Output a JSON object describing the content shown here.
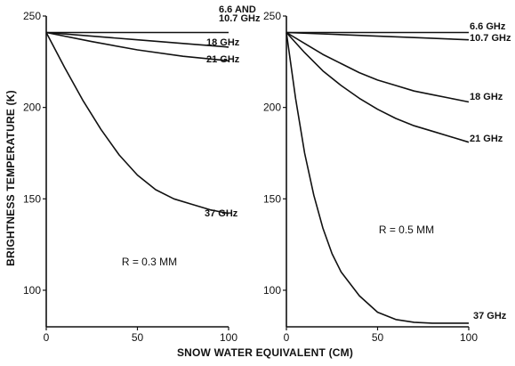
{
  "figure": {
    "ylabel": "BRIGHTNESS TEMPERATURE (K)",
    "xlabel": "SNOW WATER EQUIVALENT (CM)"
  },
  "chart_data": [
    {
      "type": "line",
      "title": "",
      "annotation": "R = 0.3 MM",
      "xlabel": "SNOW WATER EQUIVALENT (CM)",
      "ylabel": "BRIGHTNESS TEMPERATURE (K)",
      "xlim": [
        0,
        100
      ],
      "ylim": [
        80,
        250
      ],
      "xticks": [
        0,
        50,
        100
      ],
      "yticks": [
        100,
        150,
        200,
        250
      ],
      "grid": false,
      "series": [
        {
          "label": "6.6 AND 10.7 GHz",
          "label_lines": [
            "6.6 AND",
            "10.7 GHz"
          ],
          "x": [
            0,
            25,
            50,
            75,
            100
          ],
          "y": [
            241,
            241,
            241,
            241,
            241
          ]
        },
        {
          "label": "18 GHz",
          "x": [
            0,
            25,
            50,
            75,
            100
          ],
          "y": [
            241,
            239,
            237,
            235,
            233
          ]
        },
        {
          "label": "21 GHz",
          "x": [
            0,
            25,
            50,
            75,
            100
          ],
          "y": [
            241,
            236,
            231.5,
            228,
            225.5
          ]
        },
        {
          "label": "37 GHz",
          "x": [
            0,
            10,
            20,
            30,
            40,
            50,
            60,
            70,
            80,
            90,
            100
          ],
          "y": [
            241,
            222,
            204,
            188,
            174,
            163,
            155,
            150,
            147,
            144,
            142
          ]
        }
      ]
    },
    {
      "type": "line",
      "title": "",
      "annotation": "R = 0.5 MM",
      "xlabel": "SNOW WATER EQUIVALENT (CM)",
      "ylabel": "",
      "xlim": [
        0,
        100
      ],
      "ylim": [
        80,
        250
      ],
      "xticks": [
        0,
        50,
        100
      ],
      "yticks": [
        100,
        150,
        200,
        250
      ],
      "grid": false,
      "series": [
        {
          "label": "6.6 GHz",
          "x": [
            0,
            50,
            100
          ],
          "y": [
            241,
            241,
            241
          ]
        },
        {
          "label": "10.7 GHz",
          "x": [
            0,
            25,
            50,
            75,
            100
          ],
          "y": [
            241,
            240,
            239,
            238,
            237
          ]
        },
        {
          "label": "18 GHz",
          "x": [
            0,
            10,
            20,
            30,
            40,
            50,
            60,
            70,
            80,
            90,
            100
          ],
          "y": [
            241,
            235,
            229,
            224,
            219,
            215,
            212,
            209,
            207,
            205,
            203
          ]
        },
        {
          "label": "21 GHz",
          "x": [
            0,
            10,
            20,
            30,
            40,
            50,
            60,
            70,
            80,
            90,
            100
          ],
          "y": [
            241,
            230,
            220,
            212,
            205,
            199,
            194,
            190,
            187,
            184,
            181
          ]
        },
        {
          "label": "37 GHz",
          "x": [
            0,
            5,
            10,
            15,
            20,
            25,
            30,
            40,
            50,
            60,
            70,
            80,
            90,
            100
          ],
          "y": [
            241,
            205,
            175,
            152,
            134,
            120,
            110,
            97,
            88,
            84,
            82.5,
            82,
            82,
            82
          ]
        }
      ]
    }
  ]
}
